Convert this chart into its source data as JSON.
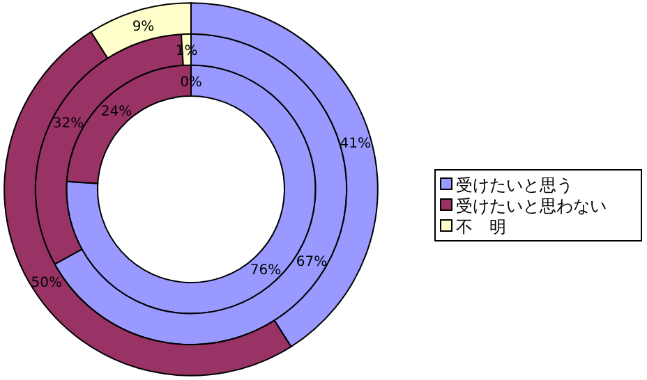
{
  "chart_data": {
    "type": "donut",
    "categories": [
      "受けたいと思う",
      "受けたいと思わない",
      "不　明"
    ],
    "colors": [
      "#9999ff",
      "#993366",
      "#ffffcc"
    ],
    "series": [
      {
        "values": [
          76,
          24,
          0
        ],
        "value_labels": [
          "76%",
          "24%",
          "0%"
        ]
      },
      {
        "values": [
          67,
          32,
          1
        ],
        "value_labels": [
          "67%",
          "32%",
          "1%"
        ]
      },
      {
        "values": [
          41,
          50,
          9
        ],
        "value_labels": [
          "41%",
          "50%",
          "9%"
        ]
      }
    ],
    "legend": "right"
  }
}
